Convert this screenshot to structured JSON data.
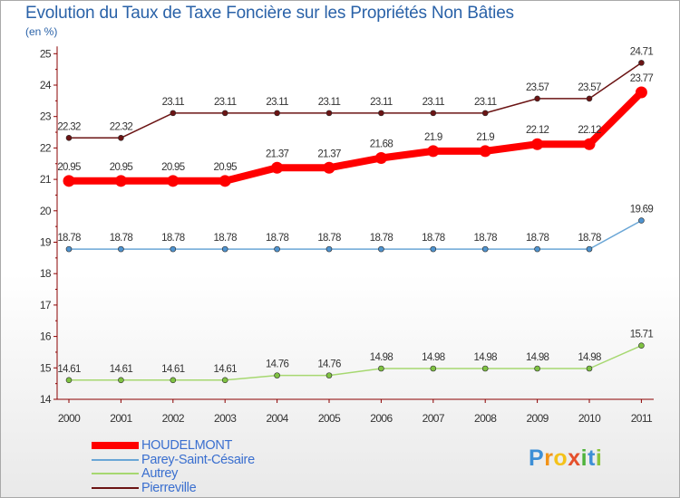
{
  "title": "Evolution du Taux de Taxe Foncière sur les Propriétés Non Bâties",
  "unit_label": "(en %)",
  "logo": {
    "text": "Proxiti",
    "letters": [
      "P",
      "r",
      "o",
      "x",
      "i",
      "t",
      "i"
    ],
    "colors": [
      "#3d8fd6",
      "#f29318",
      "#f4c21a",
      "#e5502c",
      "#4fb33d",
      "#3d8fd6",
      "#8bc43c"
    ]
  },
  "colors": {
    "axis": "#8b0000",
    "label": "#333333",
    "accent": "#2a62a8"
  },
  "chart_data": {
    "type": "line",
    "title": "Evolution du Taux de Taxe Foncière sur les Propriétés Non Bâties",
    "ylabel": "(en %)",
    "xlabel": "",
    "ylim": [
      14,
      25
    ],
    "yticks": [
      14,
      15,
      16,
      17,
      18,
      19,
      20,
      21,
      22,
      23,
      24,
      25
    ],
    "categories": [
      "2000",
      "2001",
      "2002",
      "2003",
      "2004",
      "2005",
      "2006",
      "2007",
      "2008",
      "2009",
      "2010",
      "2011"
    ],
    "series": [
      {
        "name": "Pierreville",
        "color": "#6b1414",
        "fill": "#6b1414",
        "width": 1.5,
        "radius": 3,
        "values": [
          22.32,
          22.32,
          23.11,
          23.11,
          23.11,
          23.11,
          23.11,
          23.11,
          23.11,
          23.57,
          23.57,
          24.71
        ]
      },
      {
        "name": "Parey-Saint-Césaire",
        "color": "#6aa6d6",
        "fill": "#4f93cf",
        "width": 1.5,
        "radius": 3,
        "values": [
          18.78,
          18.78,
          18.78,
          18.78,
          18.78,
          18.78,
          18.78,
          18.78,
          18.78,
          18.78,
          18.78,
          19.69
        ]
      },
      {
        "name": "Autrey",
        "color": "#a6d870",
        "fill": "#7fc242",
        "width": 1.5,
        "radius": 3,
        "values": [
          14.61,
          14.61,
          14.61,
          14.61,
          14.76,
          14.76,
          14.98,
          14.98,
          14.98,
          14.98,
          14.98,
          15.71
        ]
      },
      {
        "name": "HOUDELMONT",
        "color": "#ff0000",
        "fill": "#ff0000",
        "width": 8,
        "radius": 6.5,
        "values": [
          20.95,
          20.95,
          20.95,
          20.95,
          21.37,
          21.37,
          21.68,
          21.9,
          21.9,
          22.12,
          22.12,
          23.77
        ]
      }
    ],
    "legend_order": [
      "HOUDELMONT",
      "Parey-Saint-Césaire",
      "Autrey",
      "Pierreville"
    ],
    "legend_position": "bottom-left"
  }
}
